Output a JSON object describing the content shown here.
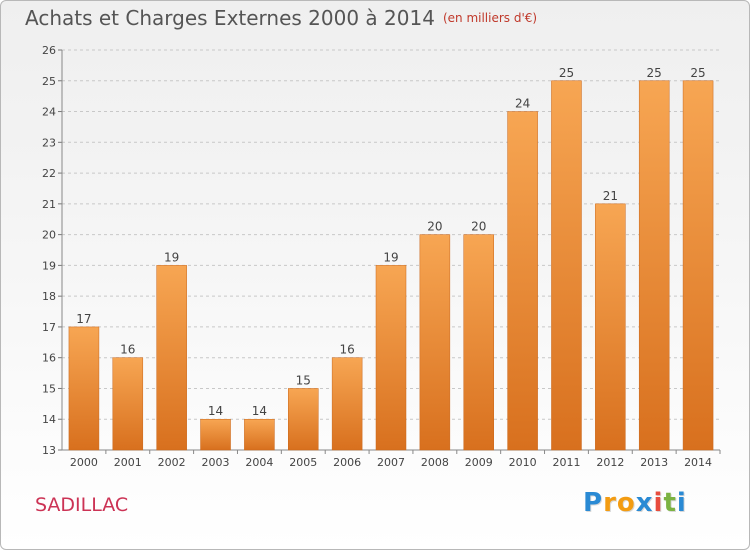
{
  "title": "Achats et Charges Externes 2000 à 2014",
  "subtitle": "(en milliers d'€)",
  "commune": "SADILLAC",
  "logo": {
    "letters": [
      "P",
      "r",
      "o",
      "x",
      "i",
      "t",
      "i"
    ],
    "colors": [
      "#2a8ad4",
      "#f39c12",
      "#f39c12",
      "#2a8ad4",
      "#e84c3d",
      "#7cb342",
      "#2a8ad4"
    ]
  },
  "colors": {
    "bar_top": "#f7a653",
    "bar_bottom": "#d8701e",
    "bar_edge": "#c9661a",
    "axis_text": "#444444",
    "grid": "#c8c8c8",
    "title": "#555555",
    "subtitle": "#c0392b",
    "commune": "#cc3355"
  },
  "chart_data": {
    "type": "bar",
    "categories": [
      "2000",
      "2001",
      "2002",
      "2003",
      "2004",
      "2005",
      "2006",
      "2007",
      "2008",
      "2009",
      "2010",
      "2011",
      "2012",
      "2013",
      "2014"
    ],
    "values": [
      17,
      16,
      19,
      14,
      14,
      15,
      16,
      19,
      20,
      20,
      24,
      25,
      21,
      25,
      25
    ],
    "data_labels": [
      "17",
      "16",
      "19",
      "14",
      "14",
      "15",
      "16",
      "19",
      "20",
      "20",
      "24",
      "25",
      "21",
      "25",
      "25"
    ],
    "y_ticks": [
      "13",
      "14",
      "15",
      "16",
      "17",
      "18",
      "19",
      "20",
      "21",
      "22",
      "23",
      "24",
      "25",
      "26"
    ],
    "ylim": [
      13,
      26
    ],
    "grid": "horizontal dashed",
    "title": "Achats et Charges Externes 2000 à 2014",
    "subtitle": "(en milliers d'€)",
    "xlabel": "",
    "ylabel": ""
  }
}
